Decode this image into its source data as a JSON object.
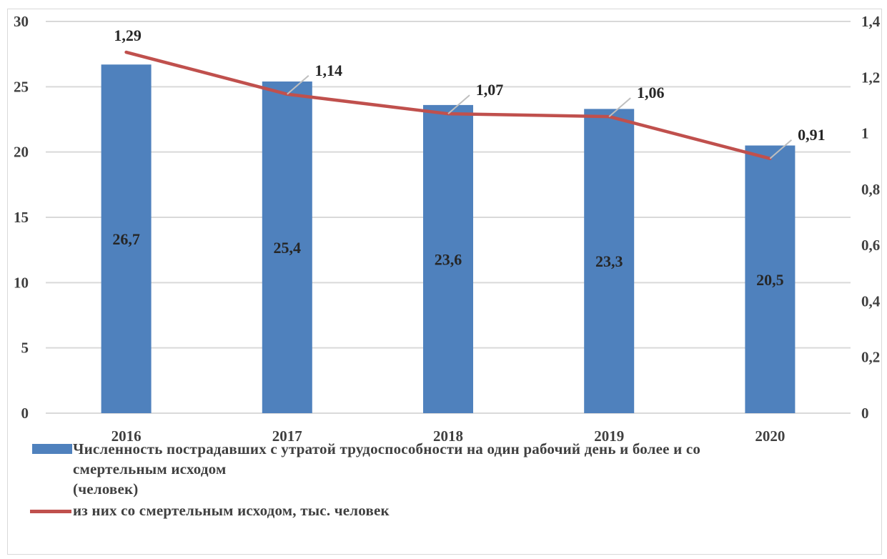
{
  "chart_data": {
    "type": "bar+line",
    "categories": [
      "2016",
      "2017",
      "2018",
      "2019",
      "2020"
    ],
    "series": [
      {
        "name": "Численность пострадавших с утратой  трудоспособности на один рабочий день и более и со смертельным исходом (человек)",
        "type": "bar",
        "axis": "left",
        "color": "#4f81bd",
        "values": [
          26.7,
          25.4,
          23.6,
          23.3,
          20.5
        ],
        "labels": [
          "26,7",
          "25,4",
          "23,6",
          "23,3",
          "20,5"
        ]
      },
      {
        "name": "из них со смертельным исходом, тыс. человек",
        "type": "line",
        "axis": "right",
        "color": "#c0504d",
        "values": [
          1.29,
          1.14,
          1.07,
          1.06,
          0.91
        ],
        "labels": [
          "1,29",
          "1,14",
          "1,07",
          "1,06",
          "0,91"
        ]
      }
    ],
    "y_left": {
      "ylim": [
        0,
        30
      ],
      "ticks": [
        "0",
        "5",
        "10",
        "15",
        "20",
        "25",
        "30"
      ]
    },
    "y_right": {
      "ylim": [
        0,
        1.4
      ],
      "ticks": [
        "0",
        "0,2",
        "0,4",
        "0,6",
        "0,8",
        "1",
        "1,2",
        "1,4"
      ]
    },
    "grid": true,
    "legend_position": "bottom-left"
  },
  "legend": {
    "bar_line1": "Численность пострадавших с утратой  трудоспособности на один рабочий день и более и со",
    "bar_line2": "смертельным исходом",
    "bar_line3": "(человек)",
    "line_label": "из них со смертельным исходом, тыс. человек"
  }
}
